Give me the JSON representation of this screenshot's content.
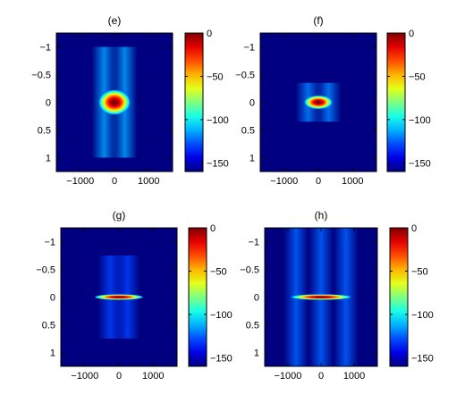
{
  "chart_data": [
    {
      "type": "heatmap",
      "panel_label": "(e)",
      "title": "(e)",
      "x_ticks": [
        -1000,
        0,
        1000
      ],
      "x_tick_labels": [
        "−1000",
        "0",
        "1000"
      ],
      "xlim": [
        -1700,
        1700
      ],
      "y_ticks": [
        -1,
        -0.5,
        0,
        0.5,
        1
      ],
      "y_tick_labels": [
        "−1",
        "−0.5",
        "0",
        "0.5",
        "1"
      ],
      "ylim": [
        -1.25,
        1.25
      ],
      "y_reversed": true,
      "colorbar": {
        "ticks": [
          0,
          -50,
          -100,
          -150
        ],
        "tick_labels": [
          "0",
          "−50",
          "−100",
          "−150"
        ],
        "range": [
          -160,
          0
        ],
        "colormap": "jet"
      },
      "peak": {
        "x": 0,
        "y": 0,
        "value": 0
      },
      "main_lobe": {
        "x_halfwidth": 450,
        "y_halfwidth": 0.22
      },
      "side_lobes": {
        "x_positions": [
          -300,
          300
        ],
        "y_extent": 1.0,
        "level": -115
      },
      "background_level": -160
    },
    {
      "type": "heatmap",
      "panel_label": "(f)",
      "title": "(f)",
      "x_ticks": [
        -1000,
        0,
        1000
      ],
      "x_tick_labels": [
        "−1000",
        "0",
        "1000"
      ],
      "xlim": [
        -1700,
        1700
      ],
      "y_ticks": [
        -1,
        -0.5,
        0,
        0.5,
        1
      ],
      "y_tick_labels": [
        "−1",
        "−0.5",
        "0",
        "0.5",
        "1"
      ],
      "ylim": [
        -1.25,
        1.25
      ],
      "y_reversed": true,
      "colorbar": {
        "ticks": [
          0,
          -50,
          -100,
          -150
        ],
        "tick_labels": [
          "0",
          "−50",
          "−100",
          "−150"
        ],
        "range": [
          -160,
          0
        ],
        "colormap": "jet"
      },
      "peak": {
        "x": 0,
        "y": 0,
        "value": 0
      },
      "main_lobe": {
        "x_halfwidth": 400,
        "y_halfwidth": 0.12
      },
      "side_lobes": {
        "x_positions": [
          -300,
          300
        ],
        "y_extent": 0.35,
        "level": -120
      },
      "background_level": -160
    },
    {
      "type": "heatmap",
      "panel_label": "(g)",
      "title": "(g)",
      "x_ticks": [
        -1000,
        0,
        1000
      ],
      "x_tick_labels": [
        "−1000",
        "0",
        "1000"
      ],
      "xlim": [
        -1700,
        1700
      ],
      "y_ticks": [
        -1,
        -0.5,
        0,
        0.5,
        1
      ],
      "y_tick_labels": [
        "−1",
        "−0.5",
        "0",
        "0.5",
        "1"
      ],
      "ylim": [
        -1.25,
        1.25
      ],
      "y_reversed": true,
      "colorbar": {
        "ticks": [
          0,
          -50,
          -100,
          -150
        ],
        "tick_labels": [
          "0",
          "−50",
          "−100",
          "−150"
        ],
        "range": [
          -160,
          0
        ],
        "colormap": "jet"
      },
      "peak": {
        "x": 0,
        "y": 0,
        "value": 0
      },
      "main_lobe": {
        "x_halfwidth": 700,
        "y_halfwidth": 0.05
      },
      "side_lobes": {
        "x_positions": [
          -250,
          250
        ],
        "y_extent": 0.75,
        "level": -130
      },
      "background_level": -160
    },
    {
      "type": "heatmap",
      "panel_label": "(h)",
      "title": "(h)",
      "x_ticks": [
        -1000,
        0,
        1000
      ],
      "x_tick_labels": [
        "−1000",
        "0",
        "1000"
      ],
      "xlim": [
        -1700,
        1700
      ],
      "y_ticks": [
        -1,
        -0.5,
        0,
        0.5,
        1
      ],
      "y_tick_labels": [
        "−1",
        "−0.5",
        "0",
        "0.5",
        "1"
      ],
      "ylim": [
        -1.25,
        1.25
      ],
      "y_reversed": true,
      "colorbar": {
        "ticks": [
          0,
          -50,
          -100,
          -150
        ],
        "tick_labels": [
          "0",
          "−50",
          "−100",
          "−150"
        ],
        "range": [
          -160,
          0
        ],
        "colormap": "jet"
      },
      "peak": {
        "x": 0,
        "y": 0,
        "value": 0
      },
      "main_lobe": {
        "x_halfwidth": 900,
        "y_halfwidth": 0.05
      },
      "side_lobes": {
        "x_positions": [
          -750,
          0,
          750
        ],
        "y_extent": 1.25,
        "level": -125
      },
      "background_level": -160
    }
  ]
}
